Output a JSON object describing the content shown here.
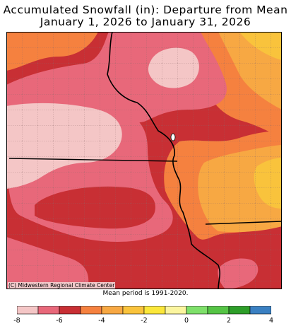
{
  "title_line1": "Accumulated Snowfall (in): Departure from Mean",
  "title_line2": "January 1, 2026 to January 31, 2026",
  "credit": "(C) Midwestern Regional Climate Center",
  "mean_period": "Mean period is 1991-2020.",
  "colors": {
    "light_pink": "#f4c6c6",
    "pink": "#e8687a",
    "dark_red": "#c82f34",
    "orange": "#f5813f",
    "light_orange": "#f7a843",
    "yellow_orange": "#f9c33c",
    "yellow": "#fbe73a",
    "pale_yellow": "#fbf59f",
    "light_green": "#7ee06a",
    "green": "#55c445",
    "dark_green": "#2d9e29",
    "blue": "#3a80c2"
  },
  "legend": {
    "swatches": [
      "#f4c6c6",
      "#e8687a",
      "#c82f34",
      "#f5813f",
      "#f7a843",
      "#f9c33c",
      "#fbe73a",
      "#fbf59f",
      "#7ee06a",
      "#55c445",
      "#2d9e29",
      "#3a80c2"
    ],
    "tick_labels": [
      "-8",
      "-6",
      "-4",
      "-2",
      "0",
      "2",
      "4"
    ]
  }
}
